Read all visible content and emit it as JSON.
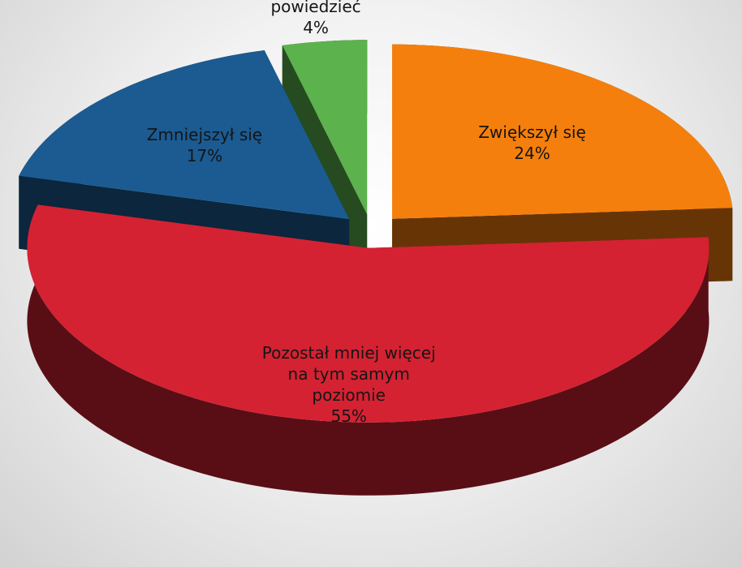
{
  "chart_data": {
    "type": "pie",
    "categories": [
      "Zwiększył się",
      "Pozostał mniej więcej na tym samym poziomie",
      "Zmniejszył się",
      "Nie wiem, trudno powiedzieć"
    ],
    "values": [
      24,
      55,
      17,
      4
    ],
    "value_labels": [
      "24%",
      "55%",
      "17%",
      "4%"
    ],
    "colors": [
      "#f57f0c",
      "#d42232",
      "#1b5b92",
      "#5cb24c"
    ]
  }
}
